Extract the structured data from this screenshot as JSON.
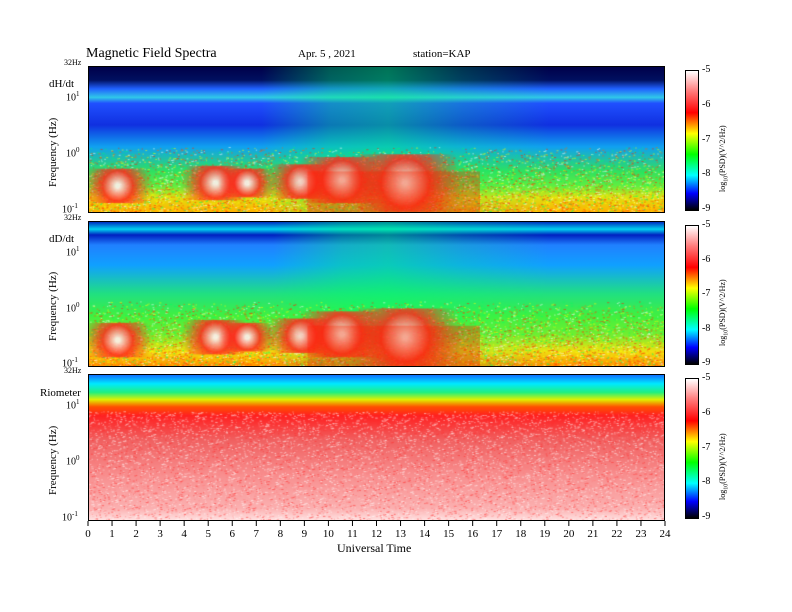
{
  "header": {
    "title": "Magnetic  Field  Spectra",
    "date": "Apr. 5  , 2021",
    "station": "station=KAP"
  },
  "chart_data": {
    "type": "heatmap",
    "xlabel": "Universal Time",
    "x_ticks": [
      "0",
      "1",
      "2",
      "3",
      "4",
      "5",
      "6",
      "7",
      "8",
      "9",
      "10",
      "11",
      "12",
      "13",
      "14",
      "15",
      "16",
      "17",
      "18",
      "19",
      "20",
      "21",
      "22",
      "23",
      "24"
    ],
    "xlim": [
      0,
      24
    ],
    "y_scale": "log",
    "panels": [
      {
        "label": "dH/dt",
        "ylabel": "Frequency  (Hz)",
        "top_label": "32Hz",
        "yticks": [
          {
            "base": "10",
            "exp": "1"
          },
          {
            "base": "10",
            "exp": "0"
          },
          {
            "base": "10",
            "exp": "-1"
          }
        ],
        "colorbar": {
          "ticks": [
            "-5",
            "-6",
            "-7",
            "-8",
            "-9"
          ],
          "label_pre": "log",
          "label_sub": "10",
          "label_post": "(PSD)(V^2/Hz)",
          "range": [
            -9,
            -5
          ]
        }
      },
      {
        "label": "dD/dt",
        "ylabel": "Frequency  (Hz)",
        "top_label": "32Hz",
        "yticks": [
          {
            "base": "10",
            "exp": "1"
          },
          {
            "base": "10",
            "exp": "0"
          },
          {
            "base": "10",
            "exp": "-1"
          }
        ],
        "colorbar": {
          "ticks": [
            "-5",
            "-6",
            "-7",
            "-8",
            "-9"
          ],
          "label_pre": "log",
          "label_sub": "10",
          "label_post": "(PSD)(V^2/Hz)",
          "range": [
            -9,
            -5
          ]
        }
      },
      {
        "label": "Riometer",
        "ylabel": "Frequency  (Hz)",
        "top_label": "32Hz",
        "yticks": [
          {
            "base": "10",
            "exp": "1"
          },
          {
            "base": "10",
            "exp": "0"
          },
          {
            "base": "10",
            "exp": "-1"
          }
        ],
        "colorbar": {
          "ticks": [
            "-5",
            "-6",
            "-7",
            "-8",
            "-9"
          ],
          "label_pre": "log",
          "label_sub": "10",
          "label_post": "(PSD)(V^2/Hz)",
          "range": [
            -9,
            -5
          ]
        }
      }
    ],
    "colors": {
      "palette": [
        "#ffffff",
        "#ff0000",
        "#ffff00",
        "#00ff00",
        "#00ffff",
        "#0000ff",
        "#000000"
      ]
    }
  }
}
